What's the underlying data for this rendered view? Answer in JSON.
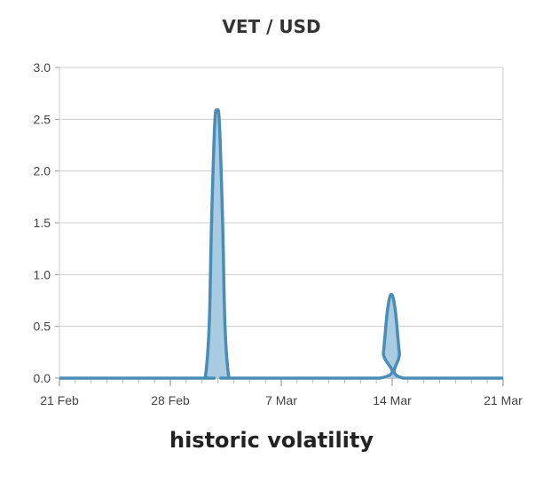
{
  "title": "VET / USD",
  "caption": "historic volatility",
  "chart_data": {
    "type": "area",
    "title": "VET / USD",
    "xlabel": "",
    "ylabel": "",
    "ylim": [
      0,
      3.0
    ],
    "y_ticks": [
      "0.0",
      "0.5",
      "1.0",
      "1.5",
      "2.0",
      "2.5",
      "3.0"
    ],
    "x_ticks": [
      "21 Feb",
      "28 Feb",
      "7 Mar",
      "14 Mar",
      "21 Mar"
    ],
    "x_range_days": [
      0,
      28
    ],
    "grid": true,
    "series": [
      {
        "color": "#4a8db7",
        "fill": "#a9cce3",
        "points": [
          [
            0,
            0
          ],
          [
            9,
            0
          ],
          [
            9.2,
            0
          ],
          [
            9.45,
            0.5
          ],
          [
            9.6,
            1.5
          ],
          [
            9.8,
            2.45
          ],
          [
            9.95,
            2.58
          ],
          [
            10.1,
            2.45
          ],
          [
            10.3,
            1.5
          ],
          [
            10.45,
            0.5
          ],
          [
            10.7,
            0
          ],
          [
            11,
            0
          ],
          [
            20.2,
            0
          ],
          [
            20.45,
            0.25
          ],
          [
            20.7,
            0.65
          ],
          [
            20.95,
            0.81
          ],
          [
            21.2,
            0.65
          ],
          [
            21.45,
            0.25
          ],
          [
            21.7,
            0
          ],
          [
            28,
            0
          ]
        ]
      }
    ]
  }
}
